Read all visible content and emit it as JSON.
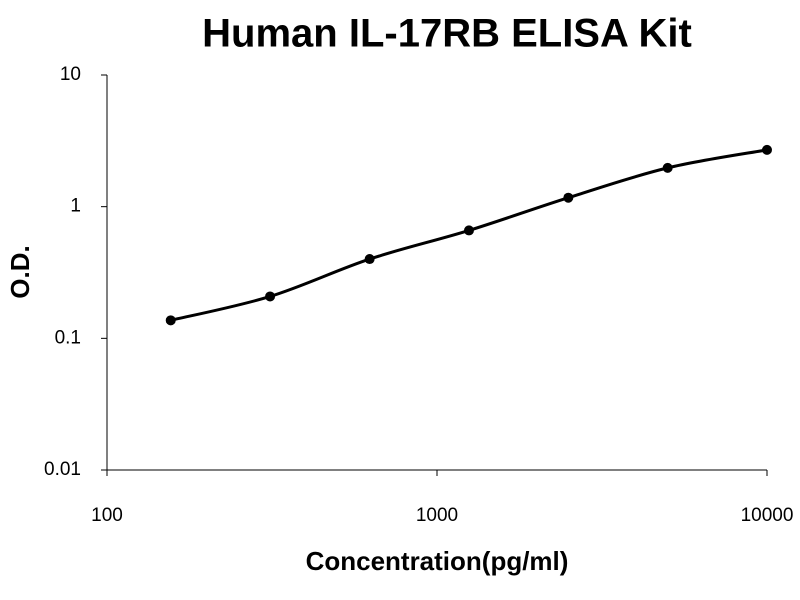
{
  "chart_data": {
    "type": "line",
    "title": "Human IL-17RB ELISA Kit",
    "x_label": "Concentration(pg/ml)",
    "y_label": "O.D.",
    "x": [
      156,
      312,
      625,
      1250,
      2500,
      5000,
      10000
    ],
    "series": [
      {
        "values": [
          0.137,
          0.208,
          0.4,
          0.66,
          1.17,
          1.97,
          2.7
        ],
        "color": "#000000"
      }
    ],
    "xlim": [
      100,
      10000
    ],
    "xticks": [
      100,
      1000,
      10000
    ],
    "ylim": [
      0.01,
      10
    ],
    "yticks": [
      0.01,
      0.1,
      1,
      10
    ],
    "x_log": true,
    "y_log": true,
    "grid": false
  }
}
